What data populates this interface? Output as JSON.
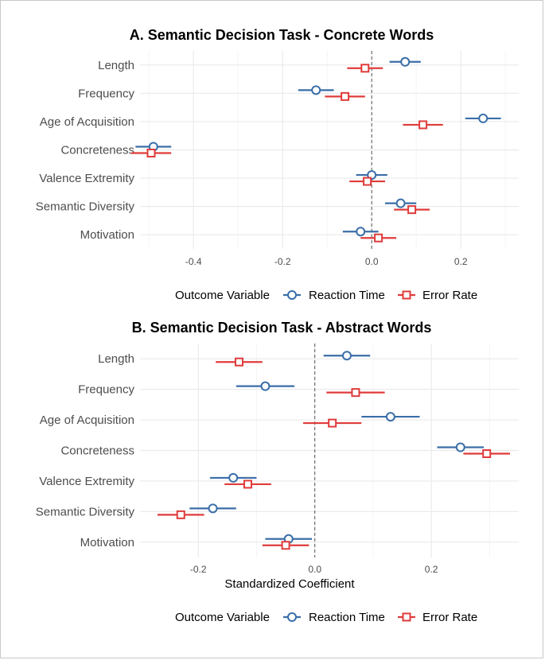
{
  "colors": {
    "reaction_time": "#3a6ea8",
    "error_rate": "#e03b3b",
    "grid": "#ebebeb",
    "zero_line": "#555555"
  },
  "chart_data": [
    {
      "type": "scatter",
      "title": "A. Semantic Decision Task - Concrete Words",
      "xlabel": "",
      "ylabel": "",
      "xlim": [
        -0.52,
        0.33
      ],
      "xticks": [
        -0.4,
        -0.2,
        0.0,
        0.2
      ],
      "xtick_labels": [
        "-0.4",
        "-0.2",
        "0.0",
        "0.2"
      ],
      "categories": [
        "Length",
        "Frequency",
        "Age of Acquisition",
        "Concreteness",
        "Valence Extremity",
        "Semantic Diversity",
        "Motivation"
      ],
      "reference_line": 0,
      "legend": {
        "title": "Outcome Variable",
        "position": "bottom"
      },
      "series": [
        {
          "name": "Reaction Time",
          "marker": "circle",
          "estimate": [
            0.075,
            -0.125,
            0.25,
            -0.49,
            0.0,
            0.065,
            -0.025
          ],
          "ci_low": [
            0.04,
            -0.165,
            0.21,
            -0.53,
            -0.035,
            0.03,
            -0.065
          ],
          "ci_high": [
            0.11,
            -0.085,
            0.29,
            -0.45,
            0.035,
            0.1,
            0.015
          ]
        },
        {
          "name": "Error Rate",
          "marker": "square",
          "estimate": [
            -0.015,
            -0.06,
            0.115,
            -0.495,
            -0.01,
            0.09,
            0.015
          ],
          "ci_low": [
            -0.055,
            -0.105,
            0.07,
            -0.54,
            -0.05,
            0.05,
            -0.025
          ],
          "ci_high": [
            0.025,
            -0.015,
            0.16,
            -0.45,
            0.03,
            0.13,
            0.055
          ]
        }
      ]
    },
    {
      "type": "scatter",
      "title": "B. Semantic Decision Task - Abstract Words",
      "xlabel": "Standardized Coefficient",
      "ylabel": "",
      "xlim": [
        -0.3,
        0.35
      ],
      "xticks": [
        -0.2,
        0.0,
        0.2
      ],
      "xtick_labels": [
        "-0.2",
        "0.0",
        "0.2"
      ],
      "categories": [
        "Length",
        "Frequency",
        "Age of Acquisition",
        "Concreteness",
        "Valence Extremity",
        "Semantic Diversity",
        "Motivation"
      ],
      "reference_line": 0,
      "legend": {
        "title": "Outcome Variable",
        "position": "bottom"
      },
      "series": [
        {
          "name": "Reaction Time",
          "marker": "circle",
          "estimate": [
            0.055,
            -0.085,
            0.13,
            0.25,
            -0.14,
            -0.175,
            -0.045
          ],
          "ci_low": [
            0.015,
            -0.135,
            0.08,
            0.21,
            -0.18,
            -0.215,
            -0.085
          ],
          "ci_high": [
            0.095,
            -0.035,
            0.18,
            0.29,
            -0.1,
            -0.135,
            -0.005
          ]
        },
        {
          "name": "Error Rate",
          "marker": "square",
          "estimate": [
            -0.13,
            0.07,
            0.03,
            0.295,
            -0.115,
            -0.23,
            -0.05
          ],
          "ci_low": [
            -0.17,
            0.02,
            -0.02,
            0.255,
            -0.155,
            -0.27,
            -0.09
          ],
          "ci_high": [
            -0.09,
            0.12,
            0.08,
            0.335,
            -0.075,
            -0.19,
            -0.01
          ]
        }
      ]
    }
  ]
}
